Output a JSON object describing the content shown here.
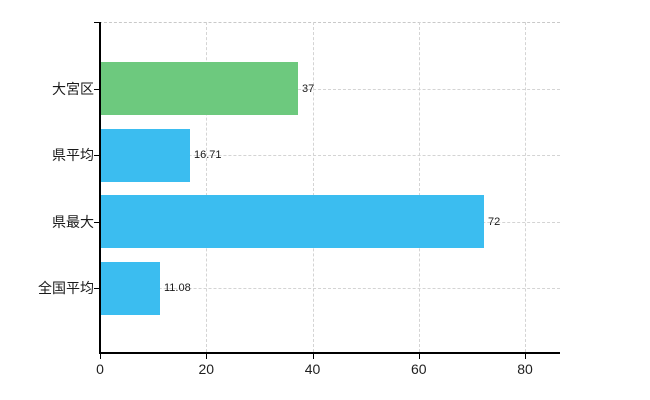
{
  "chart_data": {
    "type": "bar",
    "orientation": "horizontal",
    "title": "",
    "categories": [
      "大宮区",
      "県平均",
      "県最大",
      "全国平均"
    ],
    "values": [
      37,
      16.71,
      72,
      11.08
    ],
    "value_labels": [
      "37",
      "16.71",
      "72",
      "11.08"
    ],
    "series": [
      {
        "name": "",
        "values": [
          37,
          16.71,
          72,
          11.08
        ]
      }
    ],
    "bar_colors": [
      "#6dc97e",
      "#3bbdf0",
      "#3bbdf0",
      "#3bbdf0"
    ],
    "x_ticks": [
      0,
      20,
      40,
      60,
      80
    ],
    "x_tick_labels": [
      "0",
      "20",
      "40",
      "60",
      "80"
    ],
    "xlim": [
      0,
      86.6
    ],
    "ylabel": "",
    "xlabel": "",
    "grid": true,
    "legend": false
  },
  "colors": {
    "background": "#ffffff",
    "axis": "#000000",
    "grid": "#d4d4d4",
    "label_text": "#1a1a1a",
    "value_text": "#1a1a1a",
    "bar_green": "#6dc97e",
    "bar_blue": "#3bbdf0"
  }
}
